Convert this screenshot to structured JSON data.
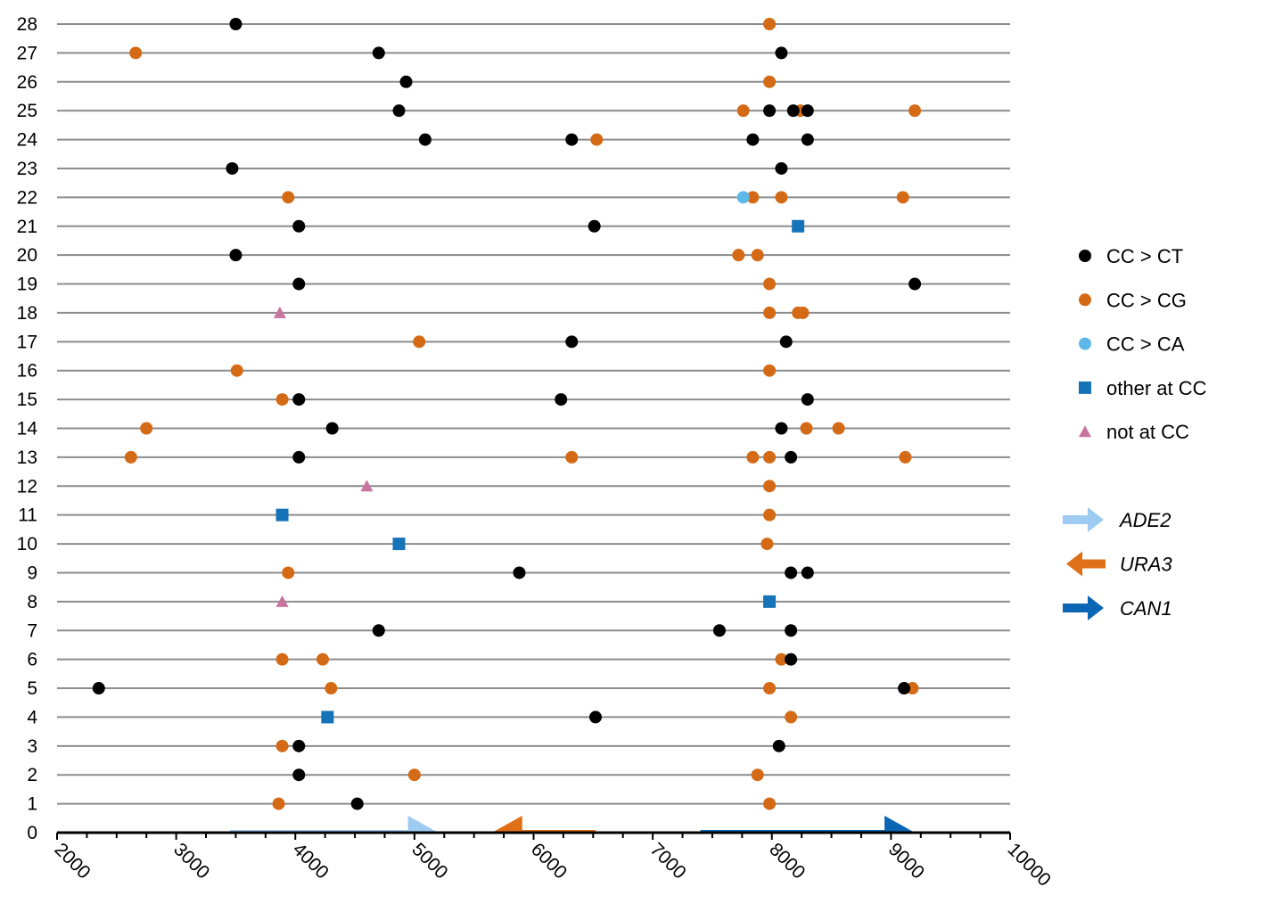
{
  "chart_data": {
    "type": "scatter",
    "title": "",
    "xlabel": "",
    "ylabel": "",
    "xlim": [
      2000,
      10000
    ],
    "ylim": [
      0,
      28
    ],
    "x_ticks": [
      "2000",
      "3000",
      "4000",
      "5000",
      "6000",
      "7000",
      "8000",
      "9000",
      "10000"
    ],
    "y_ticks": [
      "0",
      "1",
      "2",
      "3",
      "4",
      "5",
      "6",
      "7",
      "8",
      "9",
      "10",
      "11",
      "12",
      "13",
      "14",
      "15",
      "16",
      "17",
      "18",
      "19",
      "20",
      "21",
      "22",
      "23",
      "24",
      "25",
      "26",
      "27",
      "28"
    ],
    "grid": "horizontal",
    "legend_position": "right",
    "series": [
      {
        "name": "CC > CT",
        "marker": "circle",
        "color": "#000000",
        "points": [
          [
            4520,
            1
          ],
          [
            4030,
            2
          ],
          [
            4030,
            3
          ],
          [
            8060,
            3
          ],
          [
            6520,
            4
          ],
          [
            2350,
            5
          ],
          [
            9110,
            5
          ],
          [
            8160,
            6
          ],
          [
            4700,
            7
          ],
          [
            7560,
            7
          ],
          [
            8160,
            7
          ],
          [
            5880,
            9
          ],
          [
            8160,
            9
          ],
          [
            8300,
            9
          ],
          [
            4030,
            13
          ],
          [
            8160,
            13
          ],
          [
            4310,
            14
          ],
          [
            8080,
            14
          ],
          [
            4030,
            15
          ],
          [
            6230,
            15
          ],
          [
            8300,
            15
          ],
          [
            6320,
            17
          ],
          [
            8120,
            17
          ],
          [
            4030,
            19
          ],
          [
            9200,
            19
          ],
          [
            3500,
            20
          ],
          [
            4030,
            21
          ],
          [
            6510,
            21
          ],
          [
            3470,
            23
          ],
          [
            8080,
            23
          ],
          [
            5090,
            24
          ],
          [
            6320,
            24
          ],
          [
            7840,
            24
          ],
          [
            8300,
            24
          ],
          [
            4870,
            25
          ],
          [
            7980,
            25
          ],
          [
            8180,
            25
          ],
          [
            8300,
            25
          ],
          [
            4930,
            26
          ],
          [
            4700,
            27
          ],
          [
            8080,
            27
          ],
          [
            3500,
            28
          ]
        ]
      },
      {
        "name": "CC > CG",
        "marker": "circle",
        "color": "#d46a15",
        "points": [
          [
            3860,
            1
          ],
          [
            7980,
            1
          ],
          [
            5000,
            2
          ],
          [
            7880,
            2
          ],
          [
            3890,
            3
          ],
          [
            8160,
            4
          ],
          [
            4300,
            5
          ],
          [
            7980,
            5
          ],
          [
            9180,
            5
          ],
          [
            3890,
            6
          ],
          [
            4230,
            6
          ],
          [
            8080,
            6
          ],
          [
            3940,
            9
          ],
          [
            7960,
            10
          ],
          [
            7980,
            11
          ],
          [
            7980,
            12
          ],
          [
            2620,
            13
          ],
          [
            6320,
            13
          ],
          [
            7840,
            13
          ],
          [
            7980,
            13
          ],
          [
            9120,
            13
          ],
          [
            2750,
            14
          ],
          [
            8290,
            14
          ],
          [
            8560,
            14
          ],
          [
            3890,
            15
          ],
          [
            3510,
            16
          ],
          [
            7980,
            16
          ],
          [
            5040,
            17
          ],
          [
            7980,
            18
          ],
          [
            8220,
            18
          ],
          [
            8260,
            18
          ],
          [
            7980,
            19
          ],
          [
            7720,
            20
          ],
          [
            7880,
            20
          ],
          [
            3940,
            22
          ],
          [
            7840,
            22
          ],
          [
            8080,
            22
          ],
          [
            9100,
            22
          ],
          [
            6530,
            24
          ],
          [
            7760,
            25
          ],
          [
            8240,
            25
          ],
          [
            9200,
            25
          ],
          [
            7980,
            26
          ],
          [
            2660,
            27
          ],
          [
            7980,
            28
          ]
        ]
      },
      {
        "name": "CC > CA",
        "marker": "circle",
        "color": "#5cb8e6",
        "points": [
          [
            7760,
            22
          ]
        ]
      },
      {
        "name": "other at CC",
        "marker": "square",
        "color": "#1574b8",
        "points": [
          [
            4270,
            4
          ],
          [
            7980,
            8
          ],
          [
            4870,
            10
          ],
          [
            3890,
            11
          ],
          [
            8220,
            21
          ]
        ]
      },
      {
        "name": "not at CC",
        "marker": "triangle",
        "color": "#c9739f",
        "points": [
          [
            3890,
            8
          ],
          [
            4600,
            12
          ],
          [
            3870,
            18
          ]
        ]
      }
    ],
    "genes": [
      {
        "name": "ADE2",
        "start": 3450,
        "end": 5200,
        "direction": "right",
        "color": "#9ecbf2"
      },
      {
        "name": "URA3",
        "start": 6520,
        "end": 5650,
        "direction": "left",
        "color": "#e07018"
      },
      {
        "name": "CAN1",
        "start": 7400,
        "end": 9200,
        "direction": "right",
        "color": "#0a66b4"
      }
    ]
  }
}
